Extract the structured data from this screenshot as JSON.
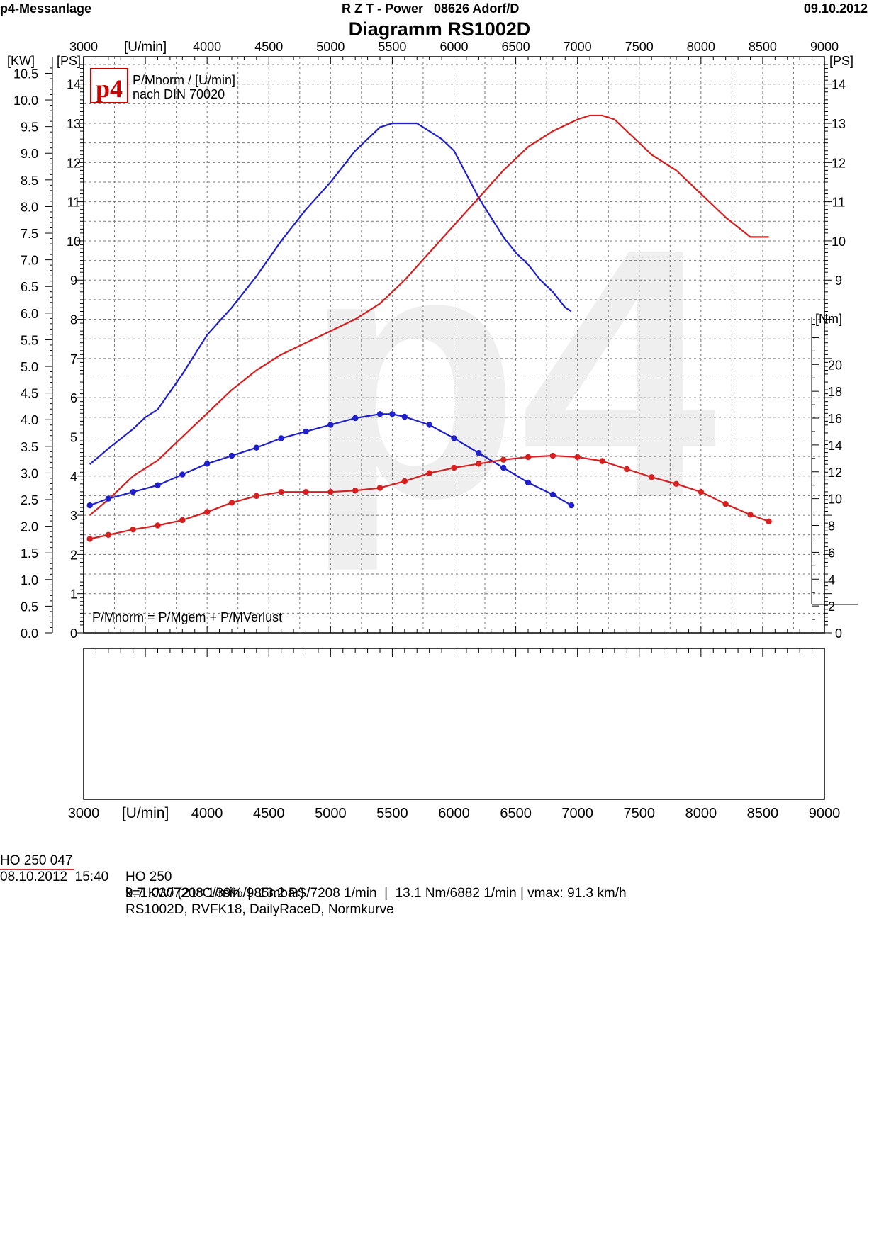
{
  "header": {
    "left": "p4-Messanlage",
    "center": "R Z T - Power   08626 Adorf/D",
    "date": "09.10.2012",
    "title": "Diagramm RS1002D"
  },
  "chart_data": {
    "type": "line",
    "x_unit_label": "[U/min]",
    "xlim": [
      3000,
      9000
    ],
    "x_ticks": [
      "3000",
      "3500",
      "4000",
      "4500",
      "5000",
      "5500",
      "6000",
      "6500",
      "7000",
      "7500",
      "8000",
      "8500",
      "9000"
    ],
    "left_kw_unit": "[KW]",
    "left_kw_ticks": [
      "0.0",
      "0.5",
      "1.0",
      "1.5",
      "2.0",
      "2.5",
      "3.0",
      "3.5",
      "4.0",
      "4.5",
      "5.0",
      "5.5",
      "6.0",
      "6.5",
      "7.0",
      "7.5",
      "8.0",
      "8.5",
      "9.0",
      "9.5",
      "10.0",
      "10.5"
    ],
    "ps_unit": "[PS]",
    "ps_ticks": [
      "0",
      "1",
      "2",
      "3",
      "4",
      "5",
      "6",
      "7",
      "8",
      "9",
      "10",
      "11",
      "12",
      "13",
      "14"
    ],
    "ps_ylim": [
      0,
      14.7
    ],
    "right_ps_unit": "[PS]",
    "right_ps_ticks": [
      "0",
      "9",
      "10",
      "11",
      "12",
      "13",
      "14"
    ],
    "nm_unit": "[Nm]",
    "nm_ticks": [
      "2",
      "4",
      "6",
      "8",
      "10",
      "12",
      "14",
      "16",
      "18",
      "20"
    ],
    "nm_ylim": [
      0,
      23.5
    ],
    "legend_title": "P/Mnorm / [U/min]",
    "legend_subtitle": "nach DIN 70020",
    "logo_text": "p4",
    "watermark": "p4",
    "formula": "P/Mnorm = P/Mgem + P/MVerlust",
    "grid": true,
    "series": [
      {
        "color": "#1f1fcc",
        "axis": "PS",
        "x": [
          3050,
          3200,
          3400,
          3500,
          3600,
          3800,
          4000,
          4200,
          4400,
          4600,
          4800,
          5000,
          5200,
          5400,
          5500,
          5600,
          5700,
          5800,
          5900,
          6000,
          6100,
          6200,
          6300,
          6400,
          6500,
          6600,
          6700,
          6800,
          6900,
          6950
        ],
        "values": [
          4.3,
          4.7,
          5.2,
          5.5,
          5.7,
          6.6,
          7.6,
          8.3,
          9.1,
          10.0,
          10.8,
          11.5,
          12.3,
          12.9,
          13.0,
          13.0,
          13.0,
          12.8,
          12.6,
          12.3,
          11.7,
          11.1,
          10.6,
          10.1,
          9.7,
          9.4,
          9.0,
          8.7,
          8.3,
          8.2
        ]
      },
      {
        "color": "#d81e1e",
        "axis": "PS",
        "x": [
          3050,
          3200,
          3400,
          3600,
          3800,
          4000,
          4200,
          4400,
          4600,
          4800,
          5000,
          5200,
          5400,
          5600,
          5800,
          6000,
          6200,
          6400,
          6600,
          6800,
          7000,
          7100,
          7200,
          7300,
          7400,
          7600,
          7800,
          8000,
          8200,
          8400,
          8500,
          8550
        ],
        "values": [
          3.0,
          3.4,
          4.0,
          4.4,
          5.0,
          5.6,
          6.2,
          6.7,
          7.1,
          7.4,
          7.7,
          8.0,
          8.4,
          9.0,
          9.7,
          10.4,
          11.1,
          11.8,
          12.4,
          12.8,
          13.1,
          13.2,
          13.2,
          13.1,
          12.8,
          12.2,
          11.8,
          11.2,
          10.6,
          10.1,
          10.1,
          10.1
        ]
      },
      {
        "color": "#1f1fcc",
        "axis": "Nm",
        "x": [
          3050,
          3200,
          3400,
          3600,
          3800,
          4000,
          4200,
          4400,
          4600,
          4800,
          5000,
          5200,
          5400,
          5500,
          5600,
          5800,
          6000,
          6200,
          6400,
          6600,
          6800,
          6950
        ],
        "values": [
          9.5,
          10.0,
          10.5,
          11.0,
          11.8,
          12.6,
          13.2,
          13.8,
          14.5,
          15.0,
          15.5,
          16.0,
          16.3,
          16.3,
          16.1,
          15.5,
          14.5,
          13.4,
          12.3,
          11.2,
          10.3,
          9.5
        ]
      },
      {
        "color": "#d81e1e",
        "axis": "Nm",
        "x": [
          3050,
          3200,
          3400,
          3600,
          3800,
          4000,
          4200,
          4400,
          4600,
          4800,
          5000,
          5200,
          5400,
          5600,
          5800,
          6000,
          6200,
          6400,
          6600,
          6800,
          7000,
          7200,
          7400,
          7600,
          7800,
          8000,
          8200,
          8400,
          8550
        ],
        "values": [
          7.0,
          7.3,
          7.7,
          8.0,
          8.4,
          9.0,
          9.7,
          10.2,
          10.5,
          10.5,
          10.5,
          10.6,
          10.8,
          11.3,
          11.9,
          12.3,
          12.6,
          12.9,
          13.1,
          13.2,
          13.1,
          12.8,
          12.2,
          11.6,
          11.1,
          10.5,
          9.6,
          8.8,
          8.3
        ]
      }
    ]
  },
  "footer_x_ticks": [
    "3000",
    "3500",
    "4000",
    "4500",
    "5000",
    "5500",
    "6000",
    "6500",
    "7000",
    "7500",
    "8000",
    "8500",
    "9000"
  ],
  "footer_x_unit_label": "[U/min]",
  "info": {
    "id": "HO 250 047",
    "model": "HO 250",
    "datetime": "08.10.2012  15:40",
    "results": "9.7 KW/7208 1/min  |  13.2 PS/7208 1/min  |  13.1 Nm/6882 1/min | vmax: 91.3 km/h",
    "conditions": "k=1.030 (21°C/39%/985mbar)",
    "setup": "RS1002D, RVFK18, DailyRaceD, Normkurve"
  }
}
